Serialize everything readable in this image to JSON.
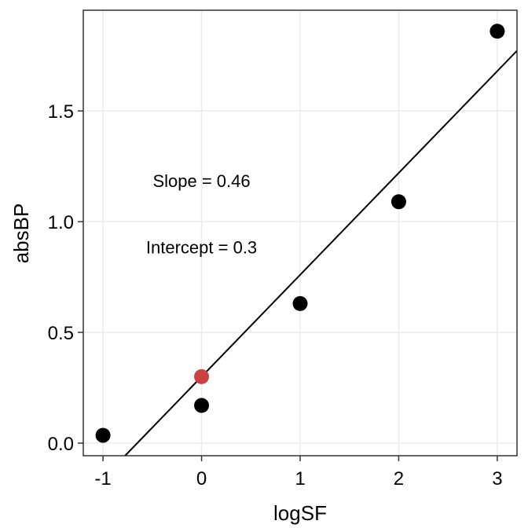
{
  "chart_data": {
    "type": "scatter",
    "title": "",
    "xlabel": "logSF",
    "ylabel": "absBP",
    "xlim": [
      -1.2,
      3.2
    ],
    "ylim": [
      -0.057,
      1.955
    ],
    "grid": true,
    "legend": null,
    "x_ticks": [
      -1,
      0,
      1,
      2,
      3
    ],
    "x_tick_labels": [
      "-1",
      "0",
      "1",
      "2",
      "3"
    ],
    "y_ticks": [
      0.0,
      0.5,
      1.0,
      1.5
    ],
    "y_tick_labels": [
      "0.0",
      "0.5",
      "1.0",
      "1.5"
    ],
    "series": [
      {
        "name": "observed",
        "color": "#000000",
        "points": [
          {
            "x": -1,
            "y": 0.035
          },
          {
            "x": 0,
            "y": 0.17
          },
          {
            "x": 1,
            "y": 0.63
          },
          {
            "x": 2,
            "y": 1.09
          },
          {
            "x": 3,
            "y": 1.86
          }
        ]
      },
      {
        "name": "intercept-point",
        "color": "#CC4141",
        "points": [
          {
            "x": 0,
            "y": 0.3
          }
        ]
      }
    ],
    "fit_line": {
      "slope": 0.46,
      "intercept": 0.3,
      "color": "#000000"
    },
    "annotations": [
      {
        "text": "Slope = 0.46",
        "x": 0,
        "y": 1.185
      },
      {
        "text": "Intercept = 0.3",
        "x": 0,
        "y": 0.885
      }
    ]
  },
  "colors": {
    "panel_border": "#333333",
    "grid": "#EBEBEB",
    "highlight": "#CC4141",
    "point": "#000000"
  }
}
